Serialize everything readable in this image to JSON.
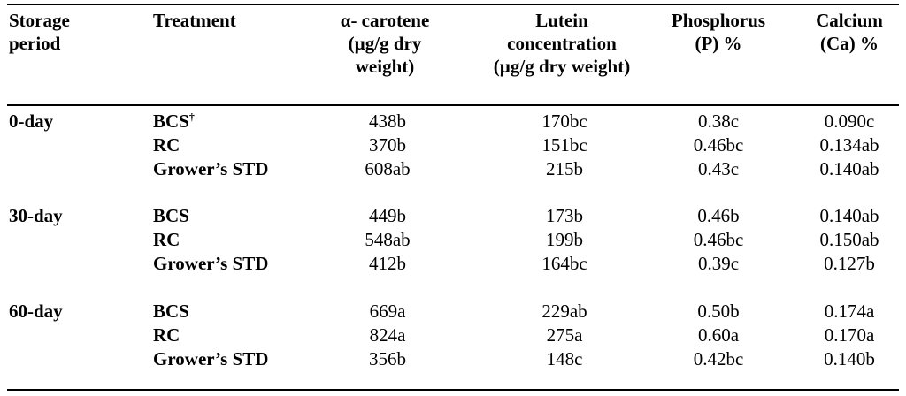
{
  "headers": {
    "storage_period": [
      "Storage",
      "period"
    ],
    "treatment": [
      "Treatment"
    ],
    "alpha_carotene": [
      "α- carotene",
      "(µg/g dry",
      "weight)"
    ],
    "lutein": [
      "Lutein",
      "concentration",
      "(µg/g dry weight)"
    ],
    "phosphorus": [
      "Phosphorus",
      "(P) %"
    ],
    "calcium": [
      "Calcium",
      "(Ca) %"
    ]
  },
  "groups": [
    {
      "period": "0-day",
      "rows": [
        {
          "treatment": "BCS",
          "mark": "†",
          "alpha_carotene": "438b",
          "lutein": "170bc",
          "phosphorus": "0.38c",
          "calcium": "0.090c"
        },
        {
          "treatment": "RC",
          "mark": "",
          "alpha_carotene": "370b",
          "lutein": "151bc",
          "phosphorus": "0.46bc",
          "calcium": "0.134ab"
        },
        {
          "treatment": "Grower’s STD",
          "mark": "",
          "alpha_carotene": "608ab",
          "lutein": "215b",
          "phosphorus": "0.43c",
          "calcium": "0.140ab"
        }
      ]
    },
    {
      "period": "30-day",
      "rows": [
        {
          "treatment": "BCS",
          "mark": "",
          "alpha_carotene": "449b",
          "lutein": "173b",
          "phosphorus": "0.46b",
          "calcium": "0.140ab"
        },
        {
          "treatment": "RC",
          "mark": "",
          "alpha_carotene": "548ab",
          "lutein": "199b",
          "phosphorus": "0.46bc",
          "calcium": "0.150ab"
        },
        {
          "treatment": "Grower’s STD",
          "mark": "",
          "alpha_carotene": "412b",
          "lutein": "164bc",
          "phosphorus": "0.39c",
          "calcium": "0.127b"
        }
      ]
    },
    {
      "period": "60-day",
      "rows": [
        {
          "treatment": "BCS",
          "mark": "",
          "alpha_carotene": "669a",
          "lutein": "229ab",
          "phosphorus": "0.50b",
          "calcium": "0.174a"
        },
        {
          "treatment": "RC",
          "mark": "",
          "alpha_carotene": "824a",
          "lutein": "275a",
          "phosphorus": "0.60a",
          "calcium": "0.170a"
        },
        {
          "treatment": "Grower’s STD",
          "mark": "",
          "alpha_carotene": "356b",
          "lutein": "148c",
          "phosphorus": "0.42bc",
          "calcium": "0.140b"
        }
      ]
    }
  ]
}
